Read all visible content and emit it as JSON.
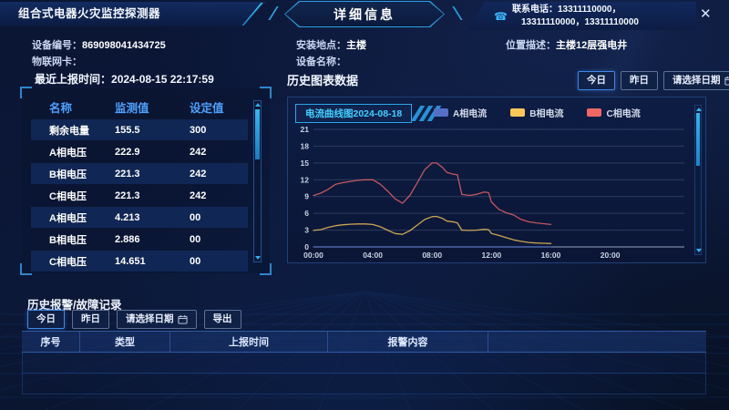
{
  "header": {
    "device_title": "组合式电器火灾监控探测器",
    "page_title": "详细信息",
    "phone_icon": "phone-icon",
    "contact_line1": "联系电话：13311110000，",
    "contact_line2": "13311110000，13311110000",
    "close_glyph": "✕"
  },
  "device_info": {
    "device_no_label": "设备编号：",
    "device_no": "869098041434725",
    "iot_label": "物联网卡：",
    "iot": "",
    "install_label": "安装地点：",
    "install": "主楼",
    "device_name_label": "设备名称：",
    "device_name": "",
    "location_label": "位置描述：",
    "location": "主楼12层强电井"
  },
  "monitor": {
    "last_report_label": "最近上报时间：",
    "last_report_time": "2024-08-15 22:17:59",
    "columns": [
      "名称",
      "监测值",
      "设定值"
    ],
    "rows": [
      {
        "name": "剩余电量",
        "value": "155.5",
        "set": "300"
      },
      {
        "name": "A相电压",
        "value": "222.9",
        "set": "242"
      },
      {
        "name": "B相电压",
        "value": "221.3",
        "set": "242"
      },
      {
        "name": "C相电压",
        "value": "221.3",
        "set": "242"
      },
      {
        "name": "A相电压",
        "value": "4.213",
        "set": "00"
      },
      {
        "name": "B相电压",
        "value": "2.886",
        "set": "00"
      },
      {
        "name": "C相电压",
        "value": "14.651",
        "set": "00"
      }
    ]
  },
  "history_chart": {
    "section_title": "历史图表数据",
    "btn_today": "今日",
    "btn_yesterday": "昨日",
    "btn_pick_date": "请选择日期",
    "badge_title": "电流曲线图2024-08-18"
  },
  "chart_data": {
    "type": "line",
    "title": "电流曲线图2024-08-18",
    "xlabel": "",
    "ylabel": "",
    "ylim": [
      0,
      21
    ],
    "y_ticks": [
      0,
      3,
      6,
      9,
      12,
      15,
      18,
      21
    ],
    "x_range_hours": [
      0,
      25
    ],
    "x_tick_hours": [
      0,
      4,
      8,
      12,
      16,
      20
    ],
    "x_ticks": [
      "00:00",
      "04:00",
      "08:00",
      "12:00",
      "16:00",
      "20:00"
    ],
    "grid": true,
    "legend_position": "top",
    "series": [
      {
        "name": "A相电流",
        "color": "#5470c6",
        "points": [
          [
            0,
            0
          ],
          [
            16,
            0
          ]
        ]
      },
      {
        "name": "B相电流",
        "color": "#fac858",
        "points": [
          [
            0,
            2.95
          ],
          [
            0.5,
            3.1
          ],
          [
            1,
            3.5
          ],
          [
            1.5,
            3.8
          ],
          [
            2,
            3.95
          ],
          [
            2.5,
            4.05
          ],
          [
            3,
            4.1
          ],
          [
            3.5,
            4.1
          ],
          [
            4,
            4.0
          ],
          [
            4.5,
            3.6
          ],
          [
            5,
            3.0
          ],
          [
            5.5,
            2.4
          ],
          [
            6,
            2.25
          ],
          [
            6.5,
            2.9
          ],
          [
            7,
            3.9
          ],
          [
            7.5,
            4.9
          ],
          [
            8,
            5.4
          ],
          [
            8.3,
            5.45
          ],
          [
            8.7,
            5.1
          ],
          [
            9,
            4.6
          ],
          [
            9.5,
            4.45
          ],
          [
            9.7,
            4.3
          ],
          [
            10,
            3.0
          ],
          [
            10.5,
            2.95
          ],
          [
            11,
            3.0
          ],
          [
            11.5,
            3.15
          ],
          [
            11.8,
            3.1
          ],
          [
            12,
            2.4
          ],
          [
            12.5,
            2.05
          ],
          [
            13,
            1.65
          ],
          [
            13.5,
            1.25
          ],
          [
            14,
            1.0
          ],
          [
            14.5,
            0.8
          ],
          [
            15,
            0.7
          ],
          [
            15.5,
            0.65
          ],
          [
            16,
            0.6
          ]
        ]
      },
      {
        "name": "C相电流",
        "color": "#ee6666",
        "points": [
          [
            0,
            9.2
          ],
          [
            0.5,
            9.6
          ],
          [
            1,
            10.3
          ],
          [
            1.5,
            11.2
          ],
          [
            2,
            11.5
          ],
          [
            2.5,
            11.7
          ],
          [
            3,
            11.9
          ],
          [
            3.5,
            12.0
          ],
          [
            4,
            12.0
          ],
          [
            4.5,
            11.2
          ],
          [
            5,
            10.0
          ],
          [
            5.5,
            8.6
          ],
          [
            6,
            7.8
          ],
          [
            6.5,
            9.2
          ],
          [
            7,
            11.5
          ],
          [
            7.5,
            13.8
          ],
          [
            8,
            15.0
          ],
          [
            8.3,
            15.0
          ],
          [
            8.7,
            14.2
          ],
          [
            9,
            13.3
          ],
          [
            9.4,
            13.0
          ],
          [
            9.7,
            12.9
          ],
          [
            10,
            9.4
          ],
          [
            10.5,
            9.2
          ],
          [
            11,
            9.4
          ],
          [
            11.5,
            9.8
          ],
          [
            11.8,
            9.7
          ],
          [
            12,
            8.0
          ],
          [
            12.5,
            6.7
          ],
          [
            13,
            6.1
          ],
          [
            13.5,
            5.7
          ],
          [
            14,
            4.9
          ],
          [
            14.5,
            4.5
          ],
          [
            15,
            4.3
          ],
          [
            15.5,
            4.15
          ],
          [
            16,
            4.0
          ]
        ]
      }
    ]
  },
  "alarm": {
    "section_title": "历史报警/故障记录",
    "btn_today": "今日",
    "btn_yesterday": "昨日",
    "btn_pick_date": "请选择日期",
    "btn_export": "导出",
    "columns": [
      "序号",
      "类型",
      "上报时间",
      "报警内容"
    ],
    "rows": []
  }
}
